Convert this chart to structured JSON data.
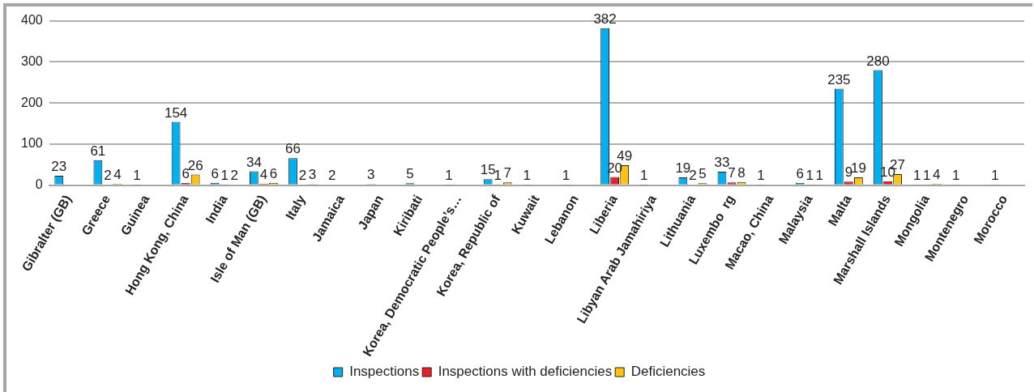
{
  "chart_data": {
    "type": "bar",
    "categories": [
      "Gibralter (GB)",
      "Greece",
      "Guinea",
      "Hong Kong, China",
      "India",
      "Isle of Man (GB)",
      "Italy",
      "Jamaica",
      "Japan",
      "Kiribati",
      "Korea, Democratic People’s…",
      "Korea, Republic of",
      "Kuwait",
      "Lebanon",
      "Liberia",
      "Libyan Arab Jamahiriya",
      "Lithuania",
      "Luxembo  rg",
      "Macao, China",
      "Malaysia",
      "Malta",
      "Marshall Islands",
      "Mongolia",
      "Montenegro",
      "Morocco"
    ],
    "series": [
      {
        "name": "Inspections",
        "color": "#00b0f0",
        "values": [
          23,
          61,
          1,
          154,
          6,
          34,
          66,
          2,
          3,
          5,
          1,
          15,
          1,
          1,
          382,
          1,
          19,
          33,
          1,
          6,
          235,
          280,
          1,
          1,
          1
        ]
      },
      {
        "name": "Inspections with deficiencies",
        "color": "#ee1c25",
        "values": [
          null,
          2,
          null,
          6,
          1,
          4,
          2,
          null,
          null,
          null,
          null,
          1,
          null,
          null,
          20,
          null,
          2,
          7,
          null,
          1,
          9,
          10,
          1,
          null,
          null
        ]
      },
      {
        "name": "Deficiencies",
        "color": "#ffc20e",
        "values": [
          null,
          4,
          null,
          26,
          2,
          6,
          3,
          null,
          null,
          null,
          null,
          7,
          null,
          null,
          49,
          null,
          5,
          8,
          null,
          1,
          19,
          27,
          4,
          null,
          null
        ]
      }
    ],
    "ylim": [
      0,
      400
    ],
    "yticks": [
      0,
      100,
      200,
      300,
      400
    ],
    "grid": "y",
    "legend": "bottom",
    "data_labels": true
  }
}
